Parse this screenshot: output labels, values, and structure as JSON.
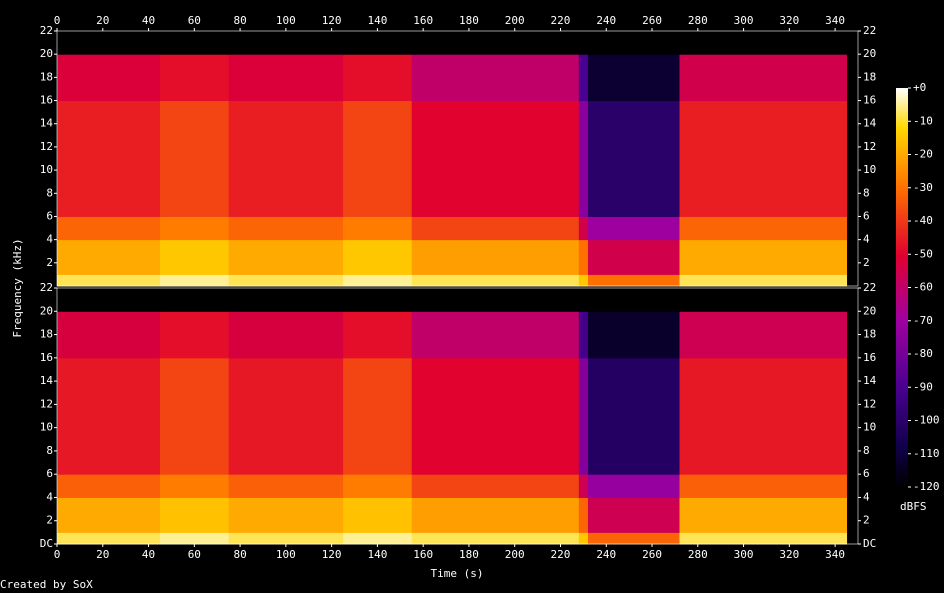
{
  "chart_data": {
    "type": "spectrogram",
    "xlabel": "Time (s)",
    "ylabel": "Frequency (kHz)",
    "xlim": [
      0,
      350
    ],
    "xticks": [
      0,
      20,
      40,
      60,
      80,
      100,
      120,
      140,
      160,
      180,
      200,
      220,
      240,
      260,
      280,
      300,
      320,
      340
    ],
    "time_edges": [
      0,
      45,
      75,
      125,
      155,
      228,
      232,
      272,
      345
    ],
    "freq_edges": [
      0,
      1,
      4,
      6,
      16,
      20,
      22
    ],
    "ylim": [
      0,
      22
    ],
    "channels": [
      {
        "yticks": [
          2,
          4,
          6,
          8,
          10,
          12,
          14,
          16,
          18,
          20,
          22
        ],
        "values": [
          [
            -8,
            -5,
            -8,
            -5,
            -8,
            -15,
            -30,
            -8
          ],
          [
            -20,
            -15,
            -20,
            -15,
            -22,
            -30,
            -55,
            -20
          ],
          [
            -32,
            -28,
            -32,
            -28,
            -38,
            -55,
            -70,
            -32
          ],
          [
            -45,
            -38,
            -45,
            -38,
            -50,
            -75,
            -100,
            -45
          ],
          [
            -52,
            -48,
            -52,
            -48,
            -60,
            -90,
            -112,
            -55
          ],
          [
            -120,
            -120,
            -120,
            -120,
            -120,
            -120,
            -120,
            -120
          ]
        ]
      },
      {
        "yticks": [
          {
            "value": 0,
            "label": "DC"
          },
          2,
          4,
          6,
          8,
          10,
          12,
          14,
          16,
          18,
          20,
          22
        ],
        "values": [
          [
            -8,
            -5,
            -8,
            -5,
            -8,
            -15,
            -32,
            -8
          ],
          [
            -20,
            -16,
            -20,
            -16,
            -22,
            -32,
            -56,
            -20
          ],
          [
            -33,
            -28,
            -33,
            -28,
            -38,
            -56,
            -72,
            -33
          ],
          [
            -46,
            -38,
            -46,
            -38,
            -50,
            -76,
            -102,
            -46
          ],
          [
            -53,
            -48,
            -53,
            -48,
            -60,
            -92,
            -113,
            -56
          ],
          [
            -120,
            -120,
            -120,
            -120,
            -120,
            -120,
            -120,
            -120
          ]
        ]
      }
    ],
    "colorbar": {
      "label": "dBFS",
      "lim": [
        -120,
        0
      ],
      "ticks": [
        {
          "value": 0,
          "label": "+0"
        },
        -10,
        -20,
        -30,
        -40,
        -50,
        -60,
        -70,
        -80,
        -90,
        -100,
        -110,
        -120
      ]
    },
    "credit": "Created by SoX"
  }
}
